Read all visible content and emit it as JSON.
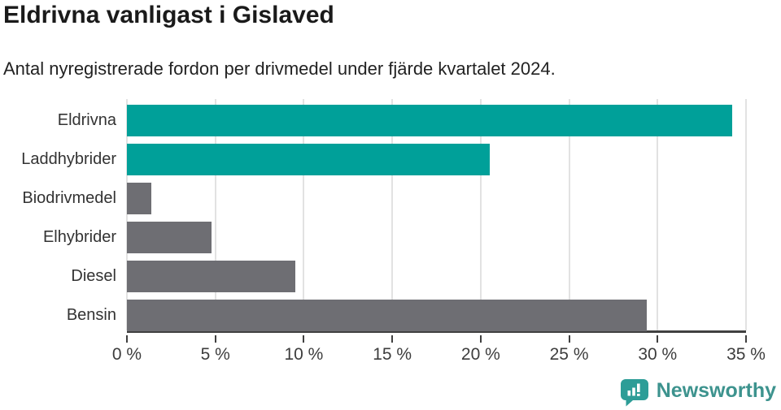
{
  "header": {
    "title": "Eldrivna vanligast i Gislaved",
    "subtitle": "Antal nyregistrerade fordon per drivmedel under fjärde kvartalet 2024."
  },
  "chart_data": {
    "type": "bar",
    "orientation": "horizontal",
    "title": "Eldrivna vanligast i Gislaved",
    "subtitle": "Antal nyregistrerade fordon per drivmedel under fjärde kvartalet 2024.",
    "categories": [
      "Eldrivna",
      "Laddhybrider",
      "Biodrivmedel",
      "Elhybrider",
      "Diesel",
      "Bensin"
    ],
    "values": [
      34.2,
      20.5,
      1.4,
      4.8,
      9.5,
      29.4
    ],
    "unit": "%",
    "bar_colors": [
      "#00a099",
      "#00a099",
      "#6e6e73",
      "#6e6e73",
      "#6e6e73",
      "#6e6e73"
    ],
    "highlight_color": "#00a099",
    "default_color": "#6e6e73",
    "xlim": [
      0,
      35
    ],
    "x_ticks": [
      0,
      5,
      10,
      15,
      20,
      25,
      30,
      35
    ],
    "x_tick_labels": [
      "0 %",
      "5 %",
      "10 %",
      "15 %",
      "20 %",
      "25 %",
      "30 %",
      "35 %"
    ],
    "xlabel": "",
    "ylabel": "",
    "grid": true,
    "legend": false
  },
  "footer": {
    "brand": "Newsworthy",
    "brand_color": "#3d938e",
    "icon": "newsworthy-speech-bubble-chart-icon"
  },
  "colors": {
    "background": "#ffffff",
    "gridline": "#e2e2e2",
    "axis": "#404040",
    "text": "#333333",
    "title": "#1a1a1a"
  }
}
